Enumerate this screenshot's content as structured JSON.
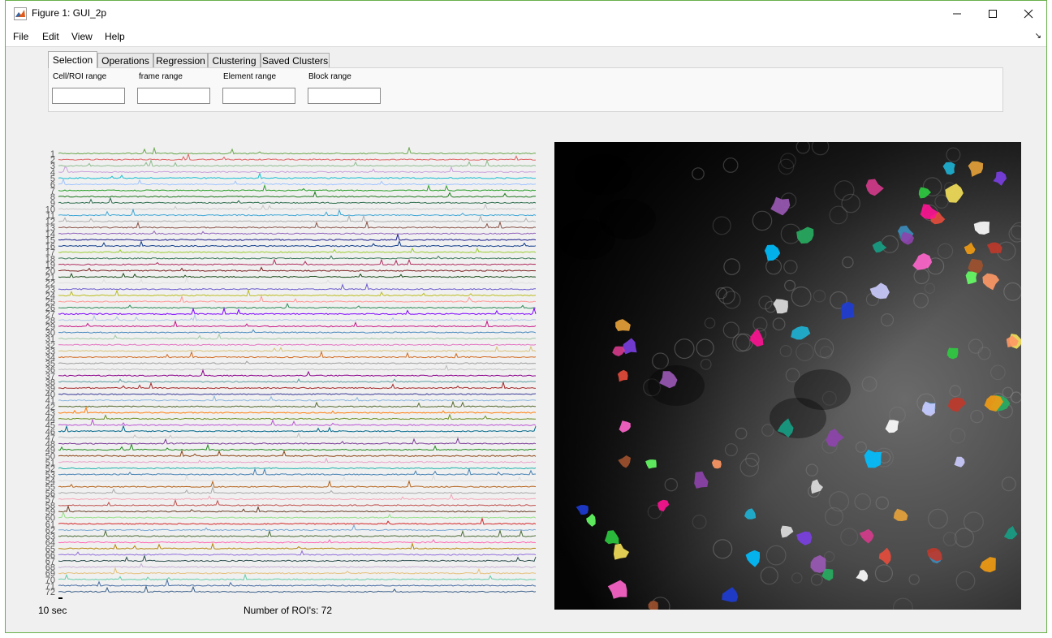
{
  "window": {
    "title": "Figure 1: GUI_2p",
    "title_icon": "matlab-icon",
    "buttons": [
      "minimize-icon",
      "maximize-icon",
      "close-icon"
    ]
  },
  "menu": {
    "items": [
      "File",
      "Edit",
      "View",
      "Help"
    ],
    "corner_icon": "dock-arrow-icon"
  },
  "tabs": [
    {
      "label": "Selection",
      "active": true
    },
    {
      "label": "Operations",
      "active": false
    },
    {
      "label": "Regression",
      "active": false
    },
    {
      "label": "Clustering",
      "active": false
    },
    {
      "label": "Saved Clusters",
      "active": false
    }
  ],
  "selection": {
    "fields": [
      {
        "label": "Cell/ROI range",
        "value": ""
      },
      {
        "label": "frame range",
        "value": ""
      },
      {
        "label": "Element range",
        "value": ""
      },
      {
        "label": "Block range",
        "value": ""
      }
    ]
  },
  "traces_plot": {
    "roi_count": 72,
    "y_tick_labels": [
      "1",
      "2",
      "3",
      "4",
      "5",
      "6",
      "7",
      "8",
      "9",
      "10",
      "11",
      "12",
      "13",
      "14",
      "15",
      "16",
      "17",
      "18",
      "19",
      "20",
      "21",
      "22",
      "23",
      "24",
      "25",
      "26",
      "27",
      "28",
      "29",
      "30",
      "31",
      "32",
      "33",
      "34",
      "35",
      "36",
      "37",
      "38",
      "39",
      "40",
      "41",
      "42",
      "43",
      "44",
      "45",
      "46",
      "47",
      "48",
      "49",
      "50",
      "51",
      "52",
      "53",
      "54",
      "55",
      "56",
      "57",
      "58",
      "59",
      "60",
      "61",
      "62",
      "63",
      "64",
      "65",
      "66",
      "67",
      "68",
      "69",
      "70",
      "71",
      "72"
    ],
    "scale_bar_label": "10 sec",
    "roi_count_label": "Number of ROI's: 72"
  },
  "image_panel": {
    "image_type": "grayscale-2p-field-of-view",
    "roi_colors": [
      "#1fb4d6",
      "#e8a33a",
      "#7b3fe4",
      "#d63b8c",
      "#2ecc40",
      "#f5e25a",
      "#9b59b6",
      "#e74c3c",
      "#3c8dbc",
      "#ffffff",
      "#27ae60",
      "#f39c12",
      "#c0392b",
      "#16a085",
      "#8e44ad",
      "#00c0ff",
      "#ff66cc",
      "#a0522d",
      "#66ff66",
      "#ff9966",
      "#ccccff",
      "#e0e0e0",
      "#1e3dd6",
      "#ff1493"
    ]
  }
}
